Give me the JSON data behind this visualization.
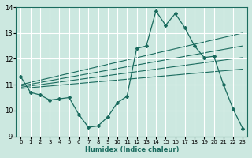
{
  "xlabel": "Humidex (Indice chaleur)",
  "ylabel": "",
  "xlim": [
    -0.5,
    23.5
  ],
  "ylim": [
    9,
    14
  ],
  "xticks": [
    0,
    1,
    2,
    3,
    4,
    5,
    6,
    7,
    8,
    9,
    10,
    11,
    12,
    13,
    14,
    15,
    16,
    17,
    18,
    19,
    20,
    21,
    22,
    23
  ],
  "yticks": [
    9,
    10,
    11,
    12,
    13,
    14
  ],
  "bg_color": "#cce8e0",
  "grid_color": "#ffffff",
  "line_color": "#1a6b5e",
  "line1_x": [
    0,
    1,
    2,
    3,
    4,
    5,
    6,
    7,
    8,
    9,
    10,
    11,
    12,
    13,
    14,
    15,
    16,
    17,
    18,
    19,
    20,
    21,
    22,
    23
  ],
  "line1_y": [
    11.3,
    10.7,
    10.6,
    10.4,
    10.45,
    10.5,
    9.85,
    9.35,
    9.4,
    9.75,
    10.3,
    10.55,
    12.4,
    12.5,
    13.85,
    13.3,
    13.75,
    13.2,
    12.5,
    12.05,
    12.1,
    11.0,
    10.05,
    9.3
  ],
  "trend_lines": [
    {
      "x0": 0,
      "y0": 11.0,
      "x1": 23,
      "y1": 13.0
    },
    {
      "x0": 0,
      "y0": 10.95,
      "x1": 23,
      "y1": 12.5
    },
    {
      "x0": 0,
      "y0": 10.9,
      "x1": 23,
      "y1": 12.05
    },
    {
      "x0": 0,
      "y0": 10.85,
      "x1": 23,
      "y1": 11.6
    }
  ]
}
